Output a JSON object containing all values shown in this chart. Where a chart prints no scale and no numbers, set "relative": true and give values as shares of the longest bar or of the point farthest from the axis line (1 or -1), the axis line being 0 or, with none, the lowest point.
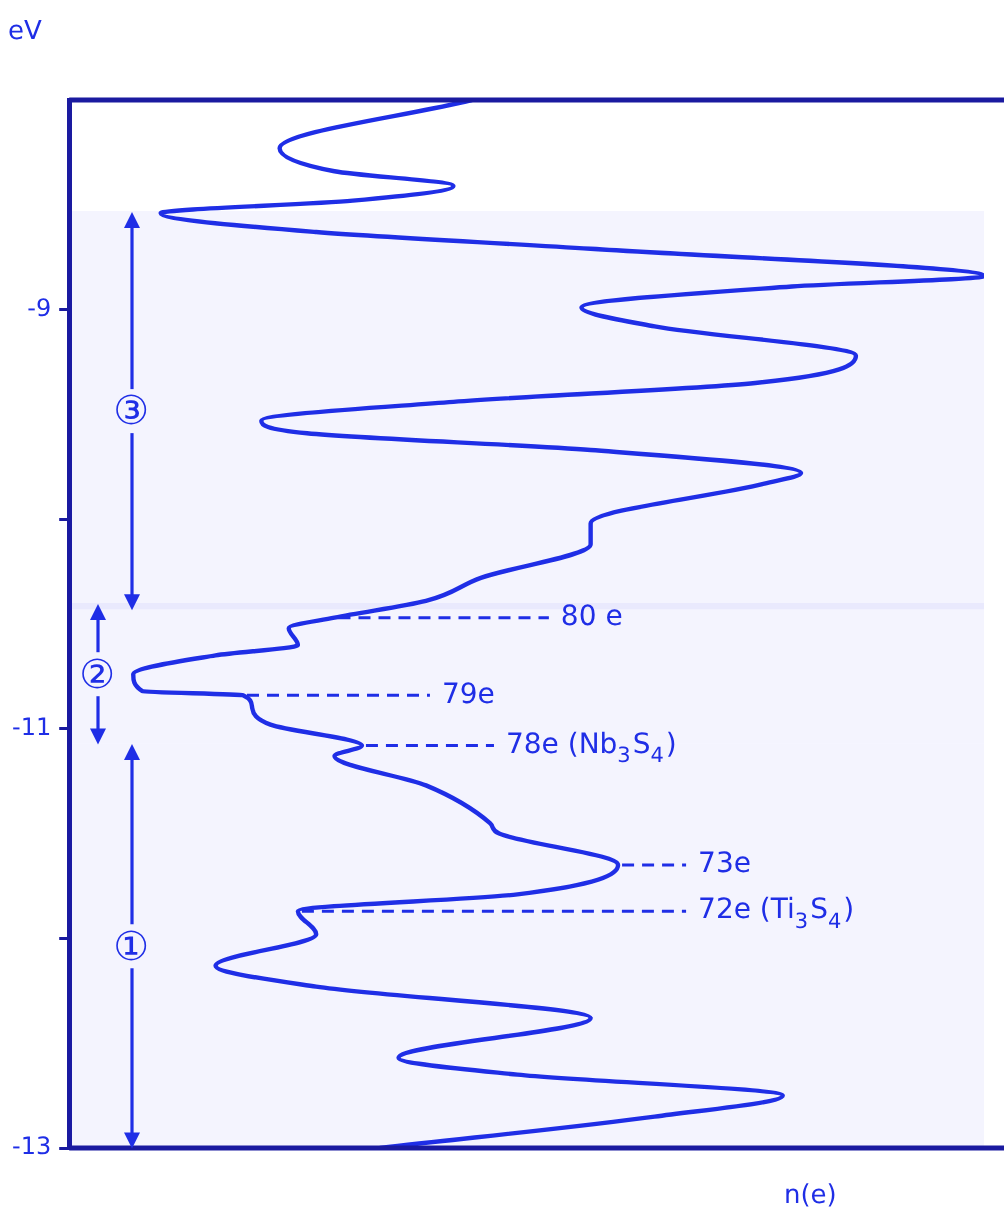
{
  "chart_data": {
    "type": "line",
    "orientation": "horizontal",
    "relative": true,
    "xlabel": "n(e)",
    "ylabel": "eV",
    "ylim": [
      -13,
      -8
    ],
    "yticks": [
      -13,
      {
        "value": -12,
        "label": null
      },
      -11,
      {
        "value": -10,
        "label": null
      },
      -9
    ],
    "x": [
      -8.0,
      -8.23,
      -8.34,
      -8.41,
      -8.48,
      -8.54,
      -8.63,
      -8.71,
      -8.84,
      -8.89,
      -8.99,
      -9.08,
      -9.22,
      -9.35,
      -9.44,
      -9.53,
      -9.59,
      -9.67,
      -9.78,
      -9.83,
      -10.02,
      -10.12,
      -10.28,
      -10.39,
      -10.47,
      -10.52,
      -10.6,
      -10.65,
      -10.74,
      -10.82,
      -10.84,
      -10.9,
      -10.98,
      -11.08,
      -11.13,
      -11.27,
      -11.45,
      -11.5,
      -11.62,
      -11.65,
      -11.79,
      -11.87,
      -11.98,
      -12.13,
      -12.23,
      -12.38,
      -12.57,
      -12.65,
      -12.75,
      -12.85,
      -13.0
    ],
    "series": [
      {
        "color": "#1f2ee6",
        "values": [
          0.44,
          0.23,
          0.29,
          0.42,
          0.31,
          0.1,
          0.27,
          0.57,
          1.0,
          0.79,
          0.56,
          0.64,
          0.86,
          0.75,
          0.42,
          0.21,
          0.26,
          0.57,
          0.8,
          0.76,
          0.57,
          0.57,
          0.45,
          0.39,
          0.29,
          0.24,
          0.25,
          0.16,
          0.07,
          0.08,
          0.19,
          0.2,
          0.22,
          0.32,
          0.29,
          0.39,
          0.46,
          0.47,
          0.59,
          0.6,
          0.49,
          0.25,
          0.27,
          0.16,
          0.27,
          0.57,
          0.36,
          0.49,
          0.78,
          0.64,
          0.34
        ]
      }
    ],
    "ref_lines": [
      {
        "axis": "y",
        "value": -10.47,
        "label": "80 e",
        "line_style": "dashed"
      },
      {
        "axis": "y",
        "value": -10.84,
        "label": "79e",
        "line_style": "dashed"
      },
      {
        "axis": "y",
        "value": -11.08,
        "label": "78e (Nb$_{3}$S$_{4}$)",
        "line_style": "dashed"
      },
      {
        "axis": "y",
        "value": -11.65,
        "label": "73e",
        "line_style": "dashed"
      },
      {
        "axis": "y",
        "value": -11.87,
        "label": "72e (Ti$_{3}$S$_{4}$)",
        "line_style": "dashed"
      }
    ],
    "bands": [
      {
        "axis": "y",
        "from": -8.53,
        "to": -10.43,
        "label": "③"
      },
      {
        "axis": "y",
        "from": -10.4,
        "to": -11.07,
        "label": "②"
      },
      {
        "axis": "y",
        "from": -11.07,
        "to": -13,
        "label": "①"
      }
    ],
    "grid": false,
    "legend": false,
    "line_style": "solid",
    "marker": "none"
  }
}
